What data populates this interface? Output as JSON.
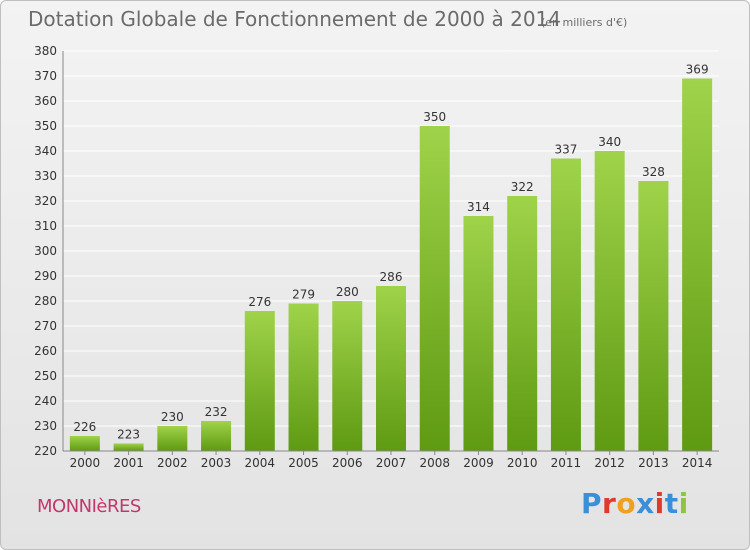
{
  "title": "Dotation Globale de Fonctionnement de 2000 à 2014",
  "unit_note": "(en milliers d'€)",
  "commune": "MONNIèRES",
  "brand": {
    "letters": [
      "P",
      "r",
      "o",
      "x",
      "i",
      "t",
      "i"
    ],
    "colors": [
      "#3a8fd8",
      "#e03a2e",
      "#f0a020",
      "#3a8fd8",
      "#e03a2e",
      "#3a8fd8",
      "#8cc63f"
    ]
  },
  "colors": {
    "bar_light": "#9fd34a",
    "bar_dark": "#5e9a12",
    "grid": "#ffffff",
    "text": "#333333"
  },
  "chart_data": {
    "type": "bar",
    "categories": [
      "2000",
      "2001",
      "2002",
      "2003",
      "2004",
      "2005",
      "2006",
      "2007",
      "2008",
      "2009",
      "2010",
      "2011",
      "2012",
      "2013",
      "2014"
    ],
    "values": [
      226,
      223,
      230,
      232,
      276,
      279,
      280,
      286,
      350,
      314,
      322,
      337,
      340,
      328,
      369
    ],
    "ylim": [
      220,
      380
    ],
    "yticks": [
      220,
      230,
      240,
      250,
      260,
      270,
      280,
      290,
      300,
      310,
      320,
      330,
      340,
      350,
      360,
      370,
      380
    ],
    "grid": true,
    "xlabel": "",
    "ylabel": ""
  }
}
